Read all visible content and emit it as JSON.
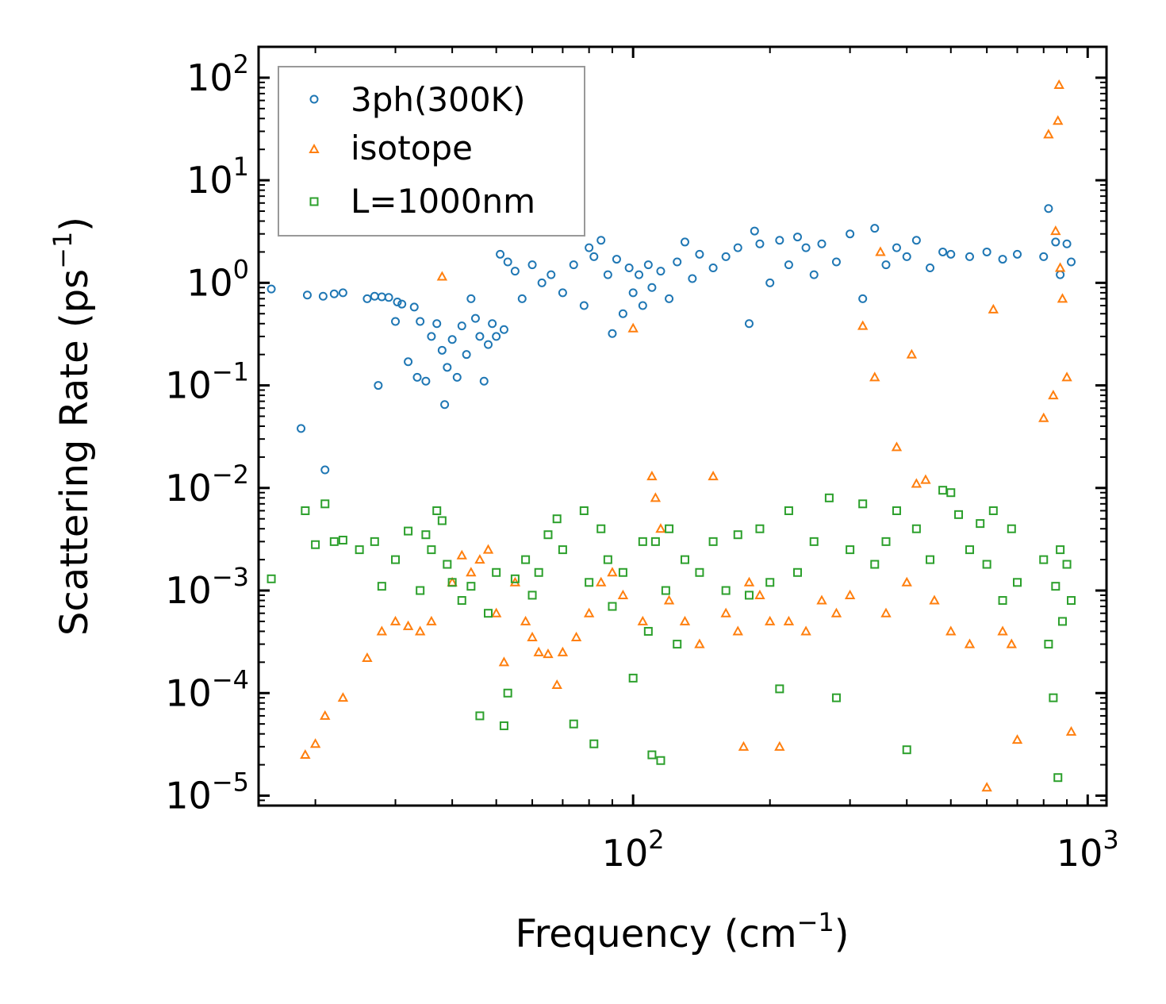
{
  "chart_data": {
    "type": "scatter",
    "title": "",
    "xlabel": "Frequency (cm",
    "xlabel_exp": "−1",
    "xlabel_end": ")",
    "ylabel": "Scattering Rate (ps",
    "ylabel_exp": "−1",
    "ylabel_end": ")",
    "xscale": "log",
    "yscale": "log",
    "xlim": [
      15,
      1100
    ],
    "ylim": [
      8e-06,
      200
    ],
    "x_ticks": [
      {
        "value": 100,
        "base": "10",
        "exp": "2"
      },
      {
        "value": 1000,
        "base": "10",
        "exp": "3"
      }
    ],
    "y_ticks": [
      {
        "value": 1e-05,
        "base": "10",
        "exp": "−5"
      },
      {
        "value": 0.0001,
        "base": "10",
        "exp": "−4"
      },
      {
        "value": 0.001,
        "base": "10",
        "exp": "−3"
      },
      {
        "value": 0.01,
        "base": "10",
        "exp": "−2"
      },
      {
        "value": 0.1,
        "base": "10",
        "exp": "−1"
      },
      {
        "value": 1,
        "base": "10",
        "exp": "0"
      },
      {
        "value": 10,
        "base": "10",
        "exp": "1"
      },
      {
        "value": 100,
        "base": "10",
        "exp": "2"
      }
    ],
    "legend_position": "top-left",
    "series": [
      {
        "name": "3ph(300K)",
        "marker": "circle",
        "color": "#1f77b4",
        "points": [
          [
            16,
            0.87
          ],
          [
            18.6,
            0.038
          ],
          [
            19.2,
            0.76
          ],
          [
            20.8,
            0.74
          ],
          [
            21.0,
            0.015
          ],
          [
            22.0,
            0.78
          ],
          [
            23,
            0.8
          ],
          [
            26,
            0.7
          ],
          [
            27,
            0.74
          ],
          [
            27.5,
            0.1
          ],
          [
            28,
            0.73
          ],
          [
            29,
            0.72
          ],
          [
            30,
            0.42
          ],
          [
            30.3,
            0.65
          ],
          [
            31,
            0.62
          ],
          [
            32,
            0.17
          ],
          [
            33,
            0.58
          ],
          [
            33.5,
            0.12
          ],
          [
            34,
            0.42
          ],
          [
            35,
            0.11
          ],
          [
            36,
            0.3
          ],
          [
            37,
            0.4
          ],
          [
            38,
            0.22
          ],
          [
            38.5,
            0.065
          ],
          [
            39,
            0.15
          ],
          [
            40,
            0.28
          ],
          [
            41,
            0.12
          ],
          [
            42,
            0.38
          ],
          [
            43,
            0.2
          ],
          [
            44,
            0.7
          ],
          [
            45,
            0.45
          ],
          [
            46,
            0.3
          ],
          [
            47,
            0.11
          ],
          [
            48,
            0.25
          ],
          [
            49,
            0.4
          ],
          [
            50,
            0.3
          ],
          [
            51,
            1.9
          ],
          [
            52,
            0.35
          ],
          [
            53,
            1.6
          ],
          [
            55,
            1.3
          ],
          [
            57,
            0.7
          ],
          [
            60,
            1.5
          ],
          [
            63,
            1.0
          ],
          [
            66,
            1.2
          ],
          [
            70,
            0.8
          ],
          [
            74,
            1.5
          ],
          [
            78,
            0.6
          ],
          [
            80,
            2.2
          ],
          [
            82,
            1.8
          ],
          [
            85,
            2.6
          ],
          [
            88,
            1.2
          ],
          [
            90,
            0.32
          ],
          [
            92,
            1.7
          ],
          [
            95,
            0.5
          ],
          [
            98,
            1.4
          ],
          [
            100,
            0.8
          ],
          [
            103,
            1.2
          ],
          [
            105,
            0.6
          ],
          [
            108,
            1.5
          ],
          [
            110,
            0.9
          ],
          [
            115,
            1.3
          ],
          [
            120,
            0.7
          ],
          [
            125,
            1.6
          ],
          [
            130,
            2.5
          ],
          [
            135,
            1.1
          ],
          [
            140,
            1.9
          ],
          [
            150,
            1.4
          ],
          [
            160,
            1.8
          ],
          [
            170,
            2.2
          ],
          [
            180,
            0.4
          ],
          [
            185,
            3.2
          ],
          [
            190,
            2.4
          ],
          [
            200,
            1.0
          ],
          [
            210,
            2.6
          ],
          [
            220,
            1.5
          ],
          [
            230,
            2.8
          ],
          [
            240,
            2.2
          ],
          [
            250,
            1.2
          ],
          [
            260,
            2.4
          ],
          [
            280,
            1.6
          ],
          [
            300,
            3.0
          ],
          [
            320,
            0.7
          ],
          [
            340,
            3.4
          ],
          [
            360,
            1.5
          ],
          [
            380,
            2.2
          ],
          [
            400,
            1.8
          ],
          [
            420,
            2.6
          ],
          [
            450,
            1.4
          ],
          [
            480,
            2.0
          ],
          [
            500,
            1.9
          ],
          [
            550,
            1.8
          ],
          [
            600,
            2.0
          ],
          [
            650,
            1.7
          ],
          [
            700,
            1.9
          ],
          [
            800,
            1.8
          ],
          [
            820,
            5.3
          ],
          [
            850,
            2.5
          ],
          [
            870,
            1.2
          ],
          [
            900,
            2.4
          ],
          [
            920,
            1.6
          ]
        ]
      },
      {
        "name": "isotope",
        "marker": "triangle",
        "color": "#ff7f0e",
        "points": [
          [
            19,
            2.5e-05
          ],
          [
            20,
            3.2e-05
          ],
          [
            21,
            6e-05
          ],
          [
            23,
            9e-05
          ],
          [
            26,
            0.00022
          ],
          [
            28,
            0.0004
          ],
          [
            30,
            0.0005
          ],
          [
            32,
            0.00045
          ],
          [
            34,
            0.0004
          ],
          [
            36,
            0.0005
          ],
          [
            38,
            1.15
          ],
          [
            40,
            0.0012
          ],
          [
            42,
            0.0022
          ],
          [
            44,
            0.0015
          ],
          [
            46,
            0.002
          ],
          [
            48,
            0.0025
          ],
          [
            50,
            0.0006
          ],
          [
            52,
            0.0002
          ],
          [
            55,
            0.0012
          ],
          [
            58,
            0.0005
          ],
          [
            60,
            0.00035
          ],
          [
            62,
            0.00025
          ],
          [
            65,
            0.00024
          ],
          [
            68,
            0.00012
          ],
          [
            70,
            0.00025
          ],
          [
            75,
            0.00035
          ],
          [
            80,
            0.0006
          ],
          [
            85,
            0.0012
          ],
          [
            90,
            0.0015
          ],
          [
            95,
            0.0009
          ],
          [
            100,
            0.36
          ],
          [
            105,
            0.0005
          ],
          [
            110,
            0.013
          ],
          [
            112,
            0.008
          ],
          [
            115,
            0.004
          ],
          [
            120,
            0.0008
          ],
          [
            130,
            0.0005
          ],
          [
            140,
            0.0003
          ],
          [
            150,
            0.013
          ],
          [
            160,
            0.0006
          ],
          [
            170,
            0.0004
          ],
          [
            175,
            3e-05
          ],
          [
            180,
            0.0012
          ],
          [
            190,
            0.0009
          ],
          [
            200,
            0.0005
          ],
          [
            210,
            3e-05
          ],
          [
            220,
            0.0005
          ],
          [
            240,
            0.0004
          ],
          [
            260,
            0.0008
          ],
          [
            280,
            0.0006
          ],
          [
            300,
            0.0009
          ],
          [
            320,
            0.38
          ],
          [
            340,
            0.12
          ],
          [
            350,
            2.0
          ],
          [
            360,
            0.0006
          ],
          [
            380,
            0.025
          ],
          [
            400,
            0.0012
          ],
          [
            410,
            0.2
          ],
          [
            420,
            0.011
          ],
          [
            440,
            0.012
          ],
          [
            460,
            0.0008
          ],
          [
            500,
            0.0004
          ],
          [
            550,
            0.0003
          ],
          [
            600,
            1.2e-05
          ],
          [
            620,
            0.55
          ],
          [
            650,
            0.0004
          ],
          [
            680,
            0.0003
          ],
          [
            700,
            3.5e-05
          ],
          [
            800,
            0.048
          ],
          [
            820,
            28
          ],
          [
            840,
            0.08
          ],
          [
            850,
            3.2
          ],
          [
            860,
            38
          ],
          [
            865,
            85
          ],
          [
            870,
            1.4
          ],
          [
            880,
            0.7
          ],
          [
            900,
            0.12
          ],
          [
            920,
            4.2e-05
          ]
        ]
      },
      {
        "name": "L=1000nm",
        "marker": "square",
        "color": "#2ca02c",
        "points": [
          [
            16,
            0.0013
          ],
          [
            19,
            0.006
          ],
          [
            20,
            0.0028
          ],
          [
            21,
            0.007
          ],
          [
            22,
            0.003
          ],
          [
            23,
            0.0031
          ],
          [
            25,
            0.0025
          ],
          [
            27,
            0.003
          ],
          [
            28,
            0.0011
          ],
          [
            30,
            0.002
          ],
          [
            32,
            0.0038
          ],
          [
            34,
            0.001
          ],
          [
            35,
            0.0035
          ],
          [
            36,
            0.0025
          ],
          [
            37,
            0.006
          ],
          [
            38,
            0.0048
          ],
          [
            39,
            0.0018
          ],
          [
            40,
            0.0012
          ],
          [
            42,
            0.0008
          ],
          [
            44,
            0.0011
          ],
          [
            46,
            6e-05
          ],
          [
            48,
            0.0006
          ],
          [
            50,
            0.0015
          ],
          [
            52,
            4.8e-05
          ],
          [
            53,
            0.0001
          ],
          [
            55,
            0.0013
          ],
          [
            58,
            0.002
          ],
          [
            60,
            0.0009
          ],
          [
            62,
            0.0015
          ],
          [
            65,
            0.0035
          ],
          [
            68,
            0.005
          ],
          [
            70,
            0.0025
          ],
          [
            74,
            5e-05
          ],
          [
            78,
            0.006
          ],
          [
            80,
            0.0012
          ],
          [
            82,
            3.2e-05
          ],
          [
            85,
            0.004
          ],
          [
            88,
            0.002
          ],
          [
            90,
            0.0007
          ],
          [
            95,
            0.0015
          ],
          [
            100,
            0.00014
          ],
          [
            105,
            0.003
          ],
          [
            108,
            0.0004
          ],
          [
            110,
            2.5e-05
          ],
          [
            112,
            0.003
          ],
          [
            115,
            2.2e-05
          ],
          [
            118,
            0.001
          ],
          [
            120,
            0.004
          ],
          [
            125,
            0.0003
          ],
          [
            130,
            0.002
          ],
          [
            140,
            0.0015
          ],
          [
            150,
            0.003
          ],
          [
            160,
            0.001
          ],
          [
            170,
            0.0035
          ],
          [
            180,
            0.0009
          ],
          [
            190,
            0.004
          ],
          [
            200,
            0.0012
          ],
          [
            210,
            0.00011
          ],
          [
            220,
            0.006
          ],
          [
            230,
            0.0015
          ],
          [
            250,
            0.003
          ],
          [
            270,
            0.008
          ],
          [
            280,
            9e-05
          ],
          [
            300,
            0.0025
          ],
          [
            320,
            0.007
          ],
          [
            340,
            0.0018
          ],
          [
            360,
            0.003
          ],
          [
            380,
            0.006
          ],
          [
            400,
            2.8e-05
          ],
          [
            420,
            0.004
          ],
          [
            450,
            0.002
          ],
          [
            480,
            0.0095
          ],
          [
            500,
            0.009
          ],
          [
            520,
            0.0055
          ],
          [
            550,
            0.0025
          ],
          [
            580,
            0.0045
          ],
          [
            600,
            0.0018
          ],
          [
            620,
            0.006
          ],
          [
            650,
            0.0008
          ],
          [
            680,
            0.004
          ],
          [
            700,
            0.0012
          ],
          [
            800,
            0.002
          ],
          [
            820,
            0.0003
          ],
          [
            840,
            9e-05
          ],
          [
            850,
            0.0011
          ],
          [
            860,
            1.5e-05
          ],
          [
            870,
            0.0025
          ],
          [
            880,
            0.0005
          ],
          [
            900,
            0.0018
          ],
          [
            920,
            0.0008
          ]
        ]
      }
    ]
  },
  "colors": {
    "3ph": "#1f77b4",
    "isotope": "#ff7f0e",
    "boundary": "#2ca02c",
    "axes": "#000000",
    "legend_border": "#999999"
  }
}
